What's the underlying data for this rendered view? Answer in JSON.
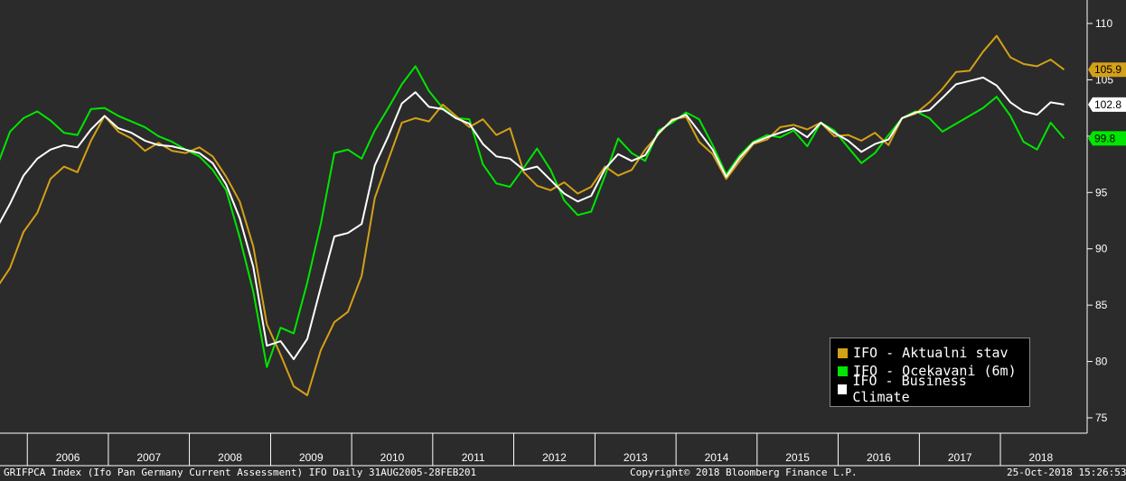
{
  "chart_data": {
    "type": "line",
    "ylim": [
      73,
      111
    ],
    "yticks": [
      75,
      80,
      85,
      90,
      95,
      100,
      105,
      110
    ],
    "x_range": [
      "2005-08-31",
      "2018-10-25"
    ],
    "x_years": [
      "2006",
      "2007",
      "2008",
      "2009",
      "2010",
      "2011",
      "2012",
      "2013",
      "2014",
      "2015",
      "2016",
      "2017",
      "2018"
    ],
    "grid": false,
    "legend_position": "bottom-right",
    "series": [
      {
        "name": "IFO - Aktualni stav",
        "color": "#d4a017",
        "last_label": "105.9",
        "x": [
          "2005-08",
          "2005-10",
          "2005-12",
          "2006-02",
          "2006-04",
          "2006-06",
          "2006-08",
          "2006-10",
          "2006-12",
          "2007-02",
          "2007-04",
          "2007-06",
          "2007-08",
          "2007-10",
          "2007-12",
          "2008-02",
          "2008-04",
          "2008-06",
          "2008-08",
          "2008-10",
          "2008-12",
          "2009-02",
          "2009-04",
          "2009-06",
          "2009-08",
          "2009-10",
          "2009-12",
          "2010-02",
          "2010-04",
          "2010-06",
          "2010-08",
          "2010-10",
          "2010-12",
          "2011-02",
          "2011-04",
          "2011-06",
          "2011-08",
          "2011-10",
          "2011-12",
          "2012-02",
          "2012-04",
          "2012-06",
          "2012-08",
          "2012-10",
          "2012-12",
          "2013-02",
          "2013-04",
          "2013-06",
          "2013-08",
          "2013-10",
          "2013-12",
          "2014-02",
          "2014-04",
          "2014-06",
          "2014-08",
          "2014-10",
          "2014-12",
          "2015-02",
          "2015-04",
          "2015-06",
          "2015-08",
          "2015-10",
          "2015-12",
          "2016-02",
          "2016-04",
          "2016-06",
          "2016-08",
          "2016-10",
          "2016-12",
          "2017-02",
          "2017-04",
          "2017-06",
          "2017-08",
          "2017-10",
          "2017-12",
          "2018-02",
          "2018-04",
          "2018-06",
          "2018-08",
          "2018-10"
        ],
        "values": [
          86.5,
          88.3,
          91.5,
          93.2,
          96.2,
          97.3,
          96.8,
          99.6,
          101.8,
          100.4,
          99.8,
          98.7,
          99.4,
          98.7,
          98.5,
          99.0,
          98.2,
          96.4,
          94.2,
          90.2,
          83.3,
          80.6,
          77.8,
          77.0,
          81.0,
          83.5,
          84.4,
          87.6,
          94.5,
          97.9,
          101.2,
          101.6,
          101.3,
          102.8,
          101.8,
          100.8,
          101.5,
          100.1,
          100.7,
          96.8,
          95.6,
          95.2,
          95.9,
          94.9,
          95.5,
          97.3,
          96.5,
          97.0,
          98.8,
          100.2,
          101.5,
          101.7,
          99.5,
          98.4,
          96.2,
          97.8,
          99.3,
          99.7,
          100.8,
          101.0,
          100.6,
          101.2,
          100.0,
          100.1,
          99.6,
          100.3,
          99.2,
          101.6,
          102.0,
          103.0,
          104.2,
          105.7,
          105.8,
          107.5,
          108.9,
          107.0,
          106.4,
          106.2,
          106.8,
          105.9
        ]
      },
      {
        "name": "IFO - Ocekavani (6m)",
        "color": "#00e600",
        "last_label": "99.8",
        "x": [
          "2005-08",
          "2005-10",
          "2005-12",
          "2006-02",
          "2006-04",
          "2006-06",
          "2006-08",
          "2006-10",
          "2006-12",
          "2007-02",
          "2007-04",
          "2007-06",
          "2007-08",
          "2007-10",
          "2007-12",
          "2008-02",
          "2008-04",
          "2008-06",
          "2008-08",
          "2008-10",
          "2008-12",
          "2009-02",
          "2009-04",
          "2009-06",
          "2009-08",
          "2009-10",
          "2009-12",
          "2010-02",
          "2010-04",
          "2010-06",
          "2010-08",
          "2010-10",
          "2010-12",
          "2011-02",
          "2011-04",
          "2011-06",
          "2011-08",
          "2011-10",
          "2011-12",
          "2012-02",
          "2012-04",
          "2012-06",
          "2012-08",
          "2012-10",
          "2012-12",
          "2013-02",
          "2013-04",
          "2013-06",
          "2013-08",
          "2013-10",
          "2013-12",
          "2014-02",
          "2014-04",
          "2014-06",
          "2014-08",
          "2014-10",
          "2014-12",
          "2015-02",
          "2015-04",
          "2015-06",
          "2015-08",
          "2015-10",
          "2015-12",
          "2016-02",
          "2016-04",
          "2016-06",
          "2016-08",
          "2016-10",
          "2016-12",
          "2017-02",
          "2017-04",
          "2017-06",
          "2017-08",
          "2017-10",
          "2017-12",
          "2018-02",
          "2018-04",
          "2018-06",
          "2018-08",
          "2018-10"
        ],
        "values": [
          97.2,
          100.4,
          101.6,
          102.2,
          101.4,
          100.3,
          100.1,
          102.4,
          102.5,
          101.8,
          101.3,
          100.8,
          100.0,
          99.5,
          98.8,
          98.2,
          97.0,
          95.2,
          91.0,
          86.2,
          79.5,
          83.0,
          82.5,
          87.0,
          92.2,
          98.5,
          98.8,
          98.0,
          100.5,
          102.5,
          104.6,
          106.2,
          104.0,
          102.5,
          101.6,
          101.5,
          97.5,
          95.8,
          95.5,
          97.2,
          98.9,
          97.0,
          94.3,
          93.0,
          93.3,
          96.5,
          99.8,
          98.5,
          97.8,
          100.5,
          101.2,
          102.1,
          101.5,
          99.2,
          96.6,
          98.3,
          99.5,
          100.1,
          99.9,
          100.5,
          99.1,
          101.2,
          100.5,
          99.0,
          97.6,
          98.5,
          100.1,
          101.6,
          102.2,
          101.6,
          100.4,
          101.1,
          101.8,
          102.5,
          103.5,
          101.8,
          99.5,
          98.8,
          101.2,
          99.8
        ]
      },
      {
        "name": "IFO - Business Climate",
        "color": "#ffffff",
        "last_label": "102.8",
        "x": [
          "2005-08",
          "2005-10",
          "2005-12",
          "2006-02",
          "2006-04",
          "2006-06",
          "2006-08",
          "2006-10",
          "2006-12",
          "2007-02",
          "2007-04",
          "2007-06",
          "2007-08",
          "2007-10",
          "2007-12",
          "2008-02",
          "2008-04",
          "2008-06",
          "2008-08",
          "2008-10",
          "2008-12",
          "2009-02",
          "2009-04",
          "2009-06",
          "2009-08",
          "2009-10",
          "2009-12",
          "2010-02",
          "2010-04",
          "2010-06",
          "2010-08",
          "2010-10",
          "2010-12",
          "2011-02",
          "2011-04",
          "2011-06",
          "2011-08",
          "2011-10",
          "2011-12",
          "2012-02",
          "2012-04",
          "2012-06",
          "2012-08",
          "2012-10",
          "2012-12",
          "2013-02",
          "2013-04",
          "2013-06",
          "2013-08",
          "2013-10",
          "2013-12",
          "2014-02",
          "2014-04",
          "2014-06",
          "2014-08",
          "2014-10",
          "2014-12",
          "2015-02",
          "2015-04",
          "2015-06",
          "2015-08",
          "2015-10",
          "2015-12",
          "2016-02",
          "2016-04",
          "2016-06",
          "2016-08",
          "2016-10",
          "2016-12",
          "2017-02",
          "2017-04",
          "2017-06",
          "2017-08",
          "2017-10",
          "2017-12",
          "2018-02",
          "2018-04",
          "2018-06",
          "2018-08",
          "2018-10"
        ],
        "values": [
          91.8,
          94.0,
          96.5,
          98.0,
          98.8,
          99.2,
          99.0,
          100.6,
          101.8,
          100.7,
          100.3,
          99.6,
          99.2,
          99.1,
          98.8,
          98.5,
          97.6,
          95.7,
          92.7,
          88.4,
          81.4,
          81.8,
          80.2,
          82.0,
          86.6,
          91.1,
          91.4,
          92.2,
          97.4,
          100.0,
          102.9,
          103.9,
          102.6,
          102.4,
          101.6,
          101.1,
          99.3,
          98.2,
          98.0,
          97.0,
          97.3,
          96.1,
          94.9,
          94.2,
          94.7,
          97.1,
          98.4,
          97.8,
          98.3,
          100.3,
          101.4,
          101.9,
          100.4,
          98.8,
          96.4,
          98.1,
          99.4,
          99.9,
          100.3,
          100.7,
          99.9,
          101.2,
          100.3,
          99.6,
          98.6,
          99.3,
          99.7,
          101.6,
          102.1,
          102.3,
          103.4,
          104.6,
          104.9,
          105.2,
          104.5,
          103.0,
          102.2,
          101.9,
          103.0,
          102.8
        ]
      }
    ]
  },
  "footer": {
    "left": "GRIFPCA Index (Ifo Pan Germany Current Assessment) IFO  Daily 31AUG2005-28FEB201",
    "center": "Copyright© 2018 Bloomberg Finance L.P.",
    "right": "25-Oct-2018 15:26:53"
  }
}
